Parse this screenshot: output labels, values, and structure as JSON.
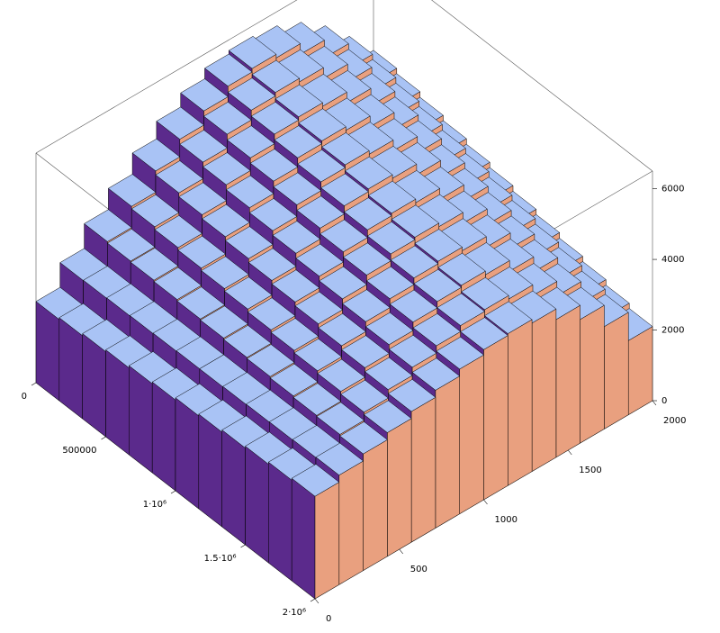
{
  "chart_data": {
    "type": "bar3d",
    "xlim": [
      0,
      2000
    ],
    "ylim": [
      0,
      2000000
    ],
    "zlim": [
      0,
      6500
    ],
    "xticks": [
      0,
      500,
      1000,
      1500,
      2000
    ],
    "yticks": [
      0,
      500000,
      {
        "value": 1000000,
        "label": "1·10⁶"
      },
      {
        "value": 1500000,
        "label": "1.5·10⁶"
      },
      {
        "value": 2000000,
        "label": "2·10⁶"
      }
    ],
    "zticks": [
      0,
      2000,
      4000,
      6000
    ],
    "colors": {
      "top": "#a9c3f5",
      "x_face": "#5b2a8c",
      "y_face": "#e9a07f"
    },
    "values": [
      [
        2300,
        3000,
        3700,
        4300,
        4900,
        5400,
        5800,
        6100,
        6200,
        6100,
        5800,
        5300,
        4600,
        3800
      ],
      [
        2350,
        3010,
        3660,
        4230,
        4790,
        5260,
        5650,
        5930,
        6030,
        5930,
        5630,
        5140,
        4450,
        3650
      ],
      [
        2410,
        3020,
        3630,
        4150,
        4680,
        5130,
        5490,
        5760,
        5850,
        5750,
        5450,
        4970,
        4290,
        3490
      ],
      [
        2460,
        3030,
        3590,
        4080,
        4570,
        4990,
        5340,
        5600,
        5680,
        5580,
        5280,
        4810,
        4140,
        3340
      ],
      [
        2520,
        3040,
        3550,
        4010,
        4460,
        4850,
        5180,
        5430,
        5510,
        5410,
        5110,
        4650,
        3980,
        3180
      ],
      [
        2570,
        3050,
        3520,
        3940,
        4350,
        4720,
        5030,
        5260,
        5340,
        5240,
        4940,
        4480,
        3830,
        3030
      ],
      [
        2630,
        3050,
        3480,
        3860,
        4250,
        4580,
        4870,
        5090,
        5160,
        5060,
        4760,
        4320,
        3670,
        2870
      ],
      [
        2680,
        3060,
        3450,
        3790,
        4140,
        4450,
        4720,
        4920,
        4990,
        4890,
        4590,
        4150,
        3520,
        2720
      ],
      [
        2740,
        3070,
        3410,
        3720,
        4030,
        4310,
        4560,
        4750,
        4820,
        4720,
        4420,
        3990,
        3360,
        2560
      ],
      [
        2790,
        3080,
        3370,
        3650,
        3920,
        4170,
        4410,
        4590,
        4650,
        4550,
        4250,
        3830,
        3210,
        2410
      ],
      [
        2850,
        3090,
        3340,
        3570,
        3810,
        4040,
        4250,
        4420,
        4470,
        4370,
        4070,
        3660,
        3050,
        2250
      ],
      [
        2900,
        3100,
        3300,
        3500,
        3700,
        3900,
        4100,
        4250,
        4300,
        4200,
        3900,
        3500,
        2900,
        2100
      ]
    ]
  }
}
